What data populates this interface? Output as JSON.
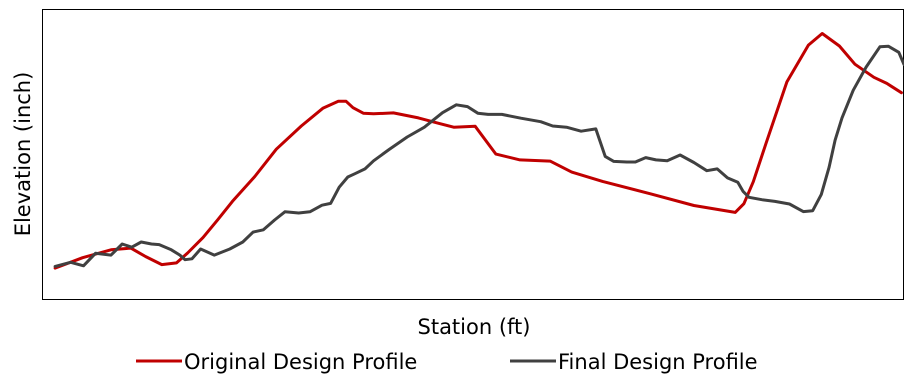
{
  "chart_data": {
    "type": "line",
    "title": "",
    "xlabel": "Station (ft)",
    "ylabel": "Elevation (inch)",
    "xlim": [
      0,
      100
    ],
    "ylim": [
      0,
      100
    ],
    "grid": false,
    "ticks_shown": false,
    "legend_position": "bottom-center",
    "series": [
      {
        "name": "Original Design Profile",
        "color": "#c00000",
        "x": [
          1.4,
          4.6,
          7.9,
          10.2,
          11.9,
          13.8,
          15.5,
          16.8,
          18.6,
          20.3,
          22.0,
          24.6,
          27.1,
          30.0,
          32.5,
          34.3,
          35.2,
          36.0,
          37.2,
          38.4,
          40.7,
          43.6,
          46.0,
          47.7,
          50.2,
          52.6,
          55.4,
          58.9,
          61.4,
          65.0,
          70.6,
          75.6,
          80.4,
          81.4,
          82.5,
          84.0,
          86.4,
          88.9,
          90.5,
          92.5,
          94.3,
          96.5,
          98.0,
          99.7
        ],
        "y": [
          11.0,
          14.6,
          17.3,
          17.9,
          15.0,
          12.2,
          12.8,
          16.2,
          21.6,
          27.7,
          34.0,
          42.6,
          52.0,
          60.0,
          66.1,
          68.5,
          68.5,
          66.3,
          64.4,
          64.2,
          64.5,
          62.8,
          60.9,
          59.6,
          59.9,
          50.3,
          48.3,
          47.9,
          44.1,
          40.9,
          36.6,
          32.6,
          30.2,
          33.2,
          40.8,
          54.2,
          75.2,
          87.9,
          91.9,
          87.6,
          81.3,
          76.8,
          74.7,
          71.5
        ]
      },
      {
        "name": "Final Design Profile",
        "color": "#404040",
        "x": [
          1.4,
          3.2,
          4.7,
          6.1,
          7.9,
          9.2,
          10.3,
          11.4,
          12.6,
          13.5,
          14.9,
          15.9,
          16.5,
          17.3,
          18.3,
          19.9,
          21.7,
          23.2,
          24.4,
          25.6,
          26.9,
          28.1,
          29.7,
          31.0,
          32.4,
          33.4,
          34.4,
          35.4,
          36.2,
          37.4,
          38.4,
          40.2,
          42.3,
          44.3,
          46.4,
          48.0,
          49.3,
          50.5,
          51.7,
          53.3,
          55.5,
          57.8,
          59.2,
          60.8,
          62.5,
          64.2,
          65.3,
          66.3,
          67.8,
          68.8,
          70.0,
          71.2,
          72.5,
          74.0,
          75.6,
          77.1,
          78.3,
          79.5,
          80.7,
          81.3,
          82.0,
          83.5,
          85.0,
          86.7,
          88.3,
          89.4,
          90.4,
          91.3,
          92.0,
          92.8,
          94.1,
          95.6,
          97.2,
          98.2,
          99.4,
          100.0
        ],
        "y": [
          11.6,
          13.0,
          11.8,
          16.1,
          15.5,
          19.3,
          18.2,
          20.0,
          19.3,
          19.1,
          17.3,
          15.5,
          13.9,
          14.2,
          17.6,
          15.5,
          17.6,
          20.0,
          23.4,
          24.2,
          27.6,
          30.4,
          30.0,
          30.4,
          32.7,
          33.3,
          38.9,
          42.4,
          43.5,
          45.2,
          48.0,
          51.9,
          56.2,
          59.6,
          64.6,
          67.3,
          66.7,
          64.4,
          64.0,
          64.0,
          62.7,
          61.5,
          60.0,
          59.6,
          58.2,
          59.0,
          49.5,
          47.8,
          47.6,
          47.6,
          49.1,
          48.3,
          48.0,
          50.0,
          47.4,
          44.6,
          45.2,
          42.1,
          40.6,
          37.5,
          35.4,
          34.6,
          34.0,
          33.1,
          30.5,
          30.8,
          36.4,
          45.8,
          55.1,
          62.8,
          72.3,
          80.3,
          87.3,
          87.5,
          85.4,
          81.2
        ]
      }
    ]
  }
}
